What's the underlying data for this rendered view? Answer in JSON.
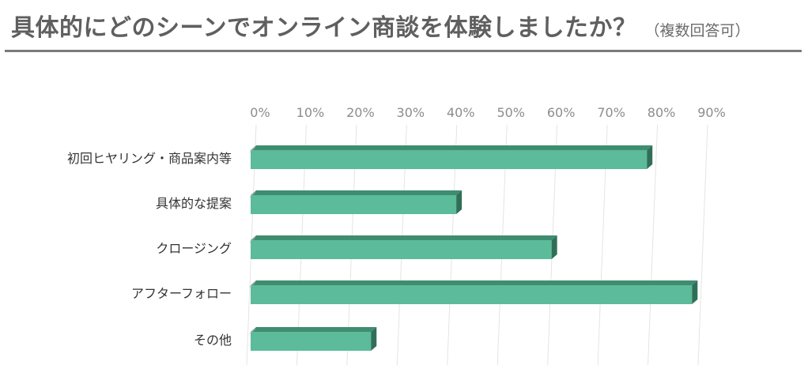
{
  "header": {
    "title": "具体的にどのシーンでオンライン商談を体験しましたか？",
    "subtitle": "（複数回答可）"
  },
  "chart_data": {
    "type": "bar",
    "orientation": "horizontal",
    "categories": [
      "初回ヒヤリング・商品案内等",
      "具体的な提案",
      "クロージング",
      "アフターフォロー",
      "その他"
    ],
    "values": [
      79,
      41,
      60,
      88,
      24
    ],
    "unit": "%",
    "xlim": [
      0,
      90
    ],
    "ticks": [
      "0%",
      "10%",
      "20%",
      "30%",
      "40%",
      "50%",
      "60%",
      "70%",
      "80%",
      "90%"
    ],
    "grid": true,
    "style": "3d",
    "colors": {
      "bar_front": "#5bbb9a",
      "bar_top": "#3f8d70",
      "bar_side": "#2f6f58"
    }
  }
}
